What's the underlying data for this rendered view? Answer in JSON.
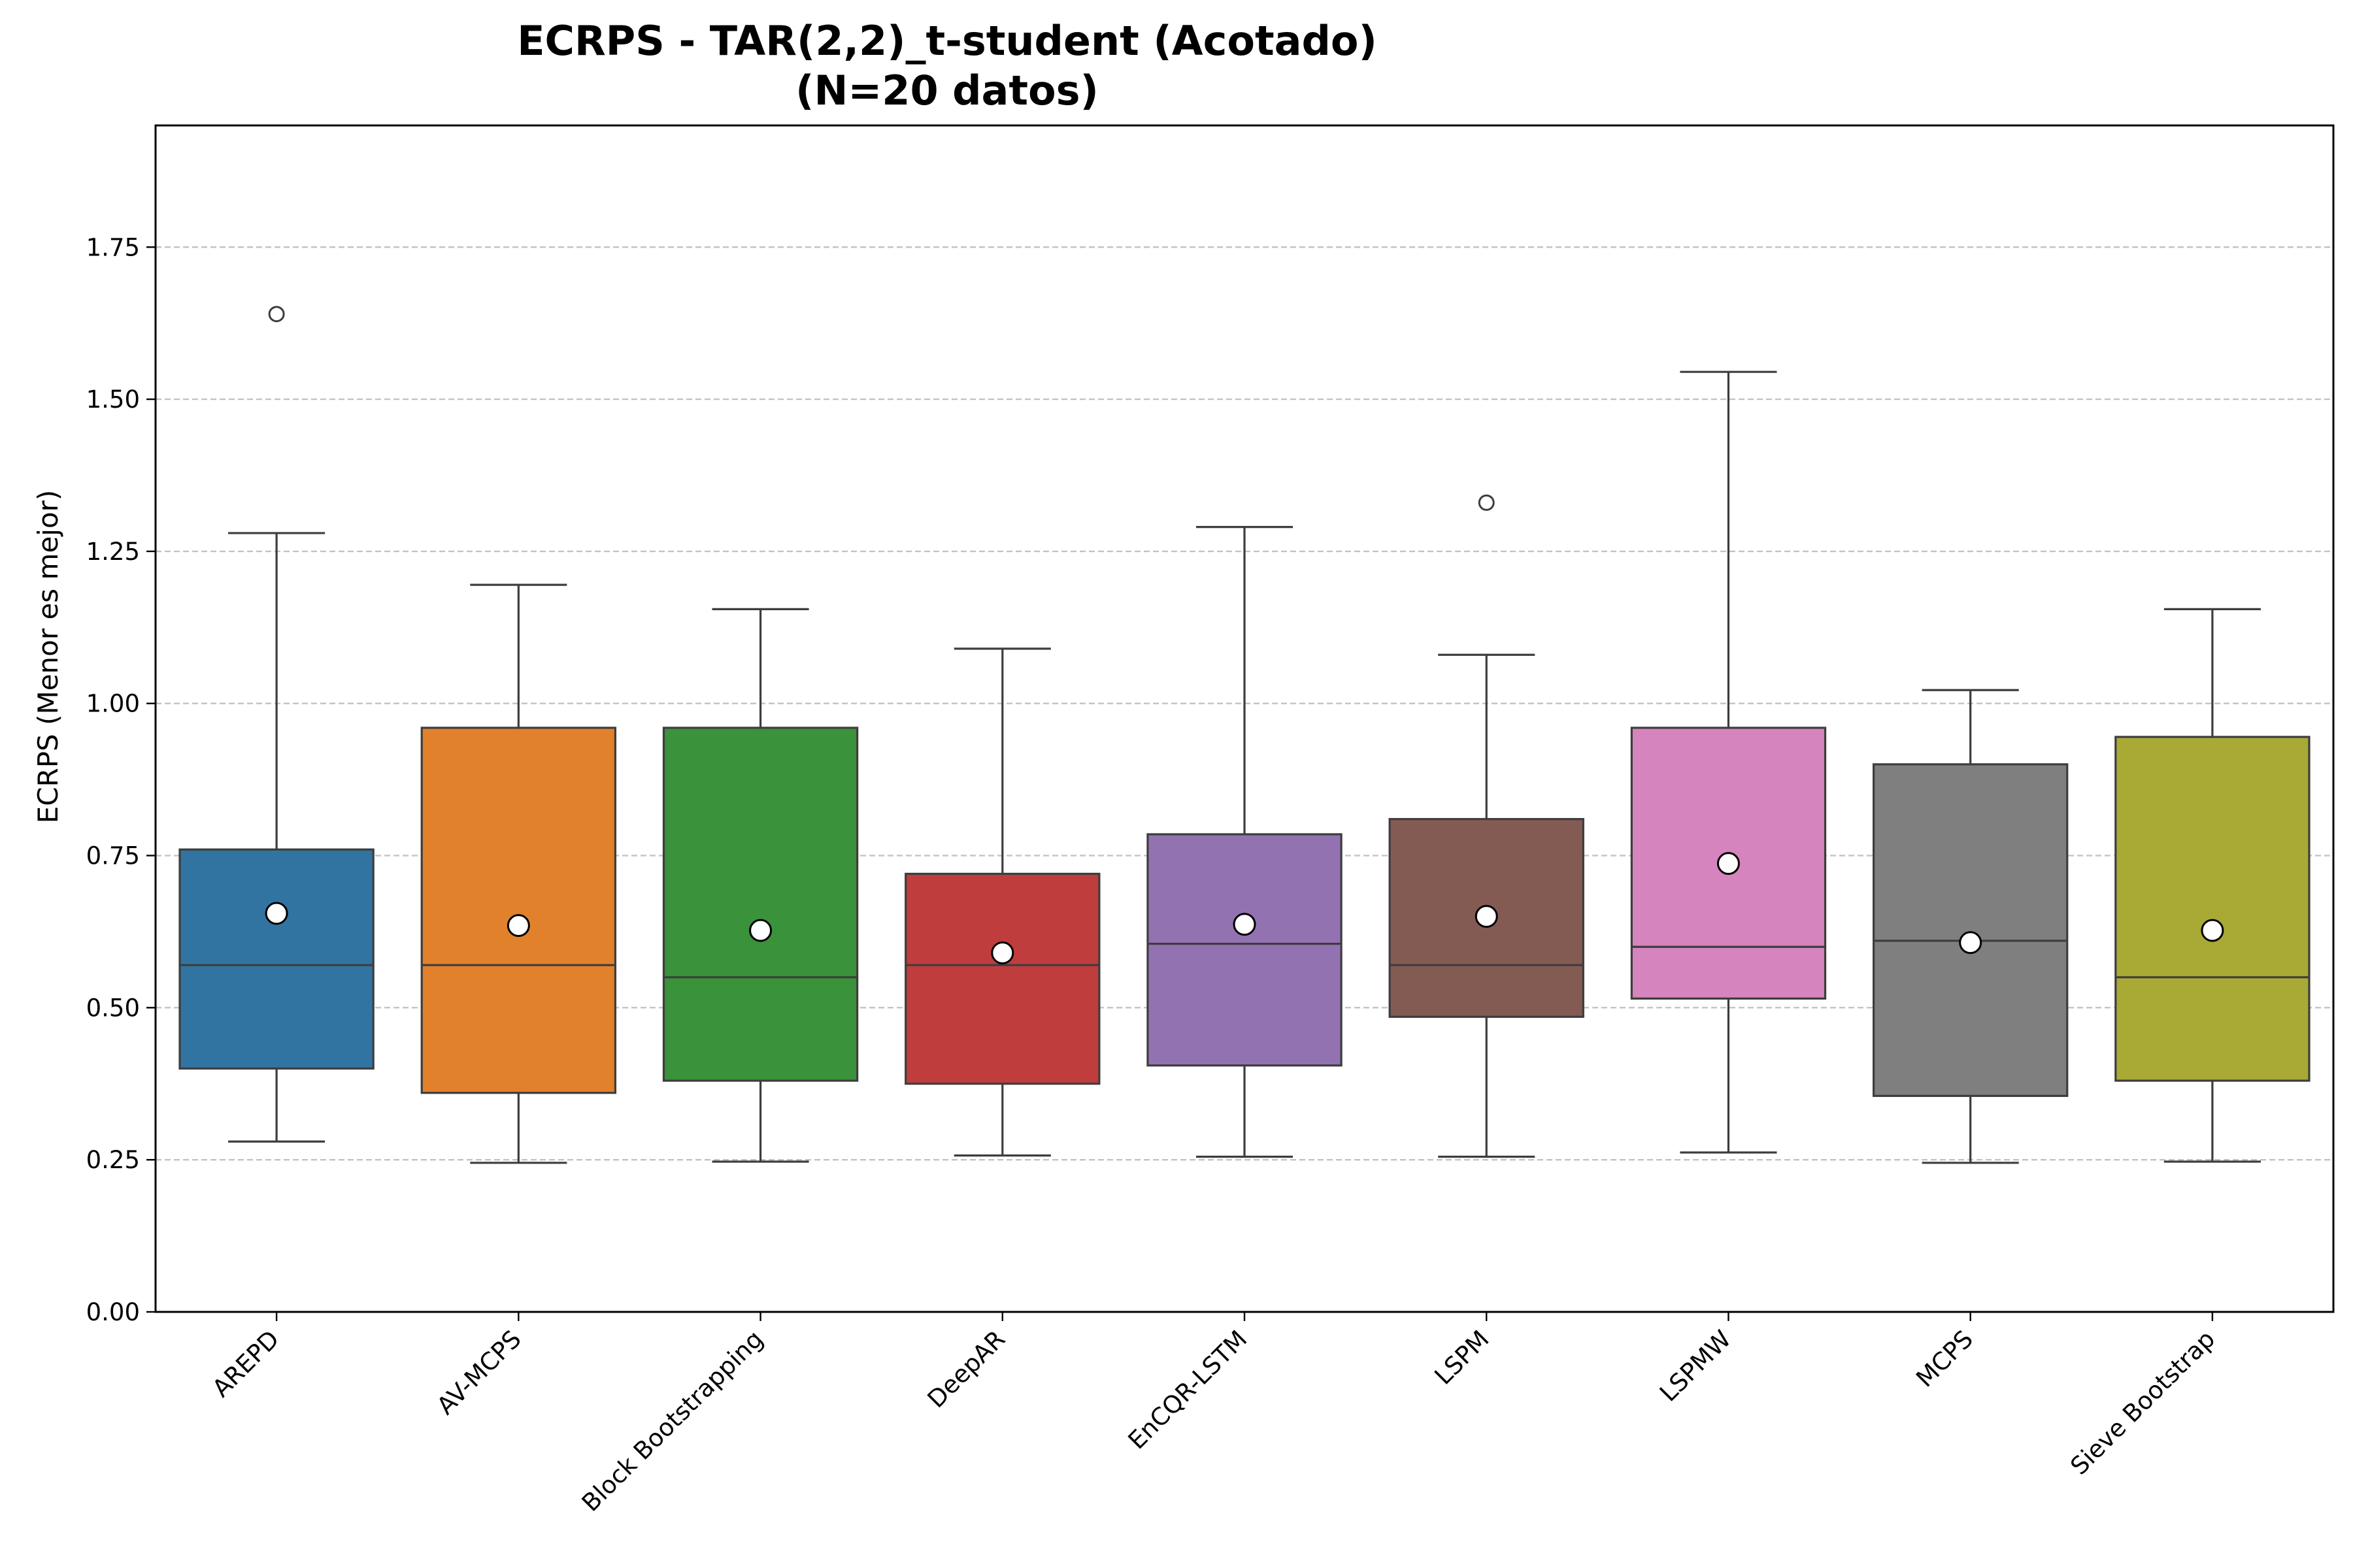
{
  "chart_data": {
    "type": "box",
    "title": "ECRPS - TAR(2,2)_t-student (Acotado)",
    "subtitle": "(N=20 datos)",
    "xlabel": "",
    "ylabel": "ECRPS (Menor es mejor)",
    "ylim": [
      0,
      1.95
    ],
    "yticks": [
      "0.00",
      "0.25",
      "0.50",
      "0.75",
      "1.00",
      "1.25",
      "1.50",
      "1.75"
    ],
    "grid": "y-dashed",
    "categories": [
      "AREPD",
      "AV-MCPS",
      "Block Bootstrapping",
      "DeepAR",
      "EnCQR-LSTM",
      "LSPM",
      "LSPMW",
      "MCPS",
      "Sieve Bootstrap"
    ],
    "colors": [
      "#3274a1",
      "#e1812c",
      "#3a923a",
      "#c03d3e",
      "#9372b2",
      "#845b53",
      "#d684bd",
      "#7f7f7f",
      "#a9aa35"
    ],
    "boxes": [
      {
        "whislo": 0.28,
        "q1": 0.4,
        "median": 0.57,
        "q3": 0.76,
        "whishi": 1.28,
        "mean": 0.655,
        "fliers": [
          1.64
        ]
      },
      {
        "whislo": 0.245,
        "q1": 0.36,
        "median": 0.57,
        "q3": 0.96,
        "whishi": 1.195,
        "mean": 0.635,
        "fliers": []
      },
      {
        "whislo": 0.247,
        "q1": 0.38,
        "median": 0.55,
        "q3": 0.96,
        "whishi": 1.155,
        "mean": 0.627,
        "fliers": []
      },
      {
        "whislo": 0.257,
        "q1": 0.375,
        "median": 0.57,
        "q3": 0.72,
        "whishi": 1.09,
        "mean": 0.59,
        "fliers": []
      },
      {
        "whislo": 0.255,
        "q1": 0.405,
        "median": 0.605,
        "q3": 0.785,
        "whishi": 1.29,
        "mean": 0.637,
        "fliers": []
      },
      {
        "whislo": 0.255,
        "q1": 0.485,
        "median": 0.57,
        "q3": 0.81,
        "whishi": 1.08,
        "mean": 0.65,
        "fliers": [
          1.33
        ]
      },
      {
        "whislo": 0.262,
        "q1": 0.515,
        "median": 0.6,
        "q3": 0.96,
        "whishi": 1.545,
        "mean": 0.737,
        "fliers": []
      },
      {
        "whislo": 0.245,
        "q1": 0.355,
        "median": 0.61,
        "q3": 0.9,
        "whishi": 1.022,
        "mean": 0.607,
        "fliers": []
      },
      {
        "whislo": 0.247,
        "q1": 0.38,
        "median": 0.55,
        "q3": 0.945,
        "whishi": 1.155,
        "mean": 0.627,
        "fliers": []
      }
    ]
  }
}
